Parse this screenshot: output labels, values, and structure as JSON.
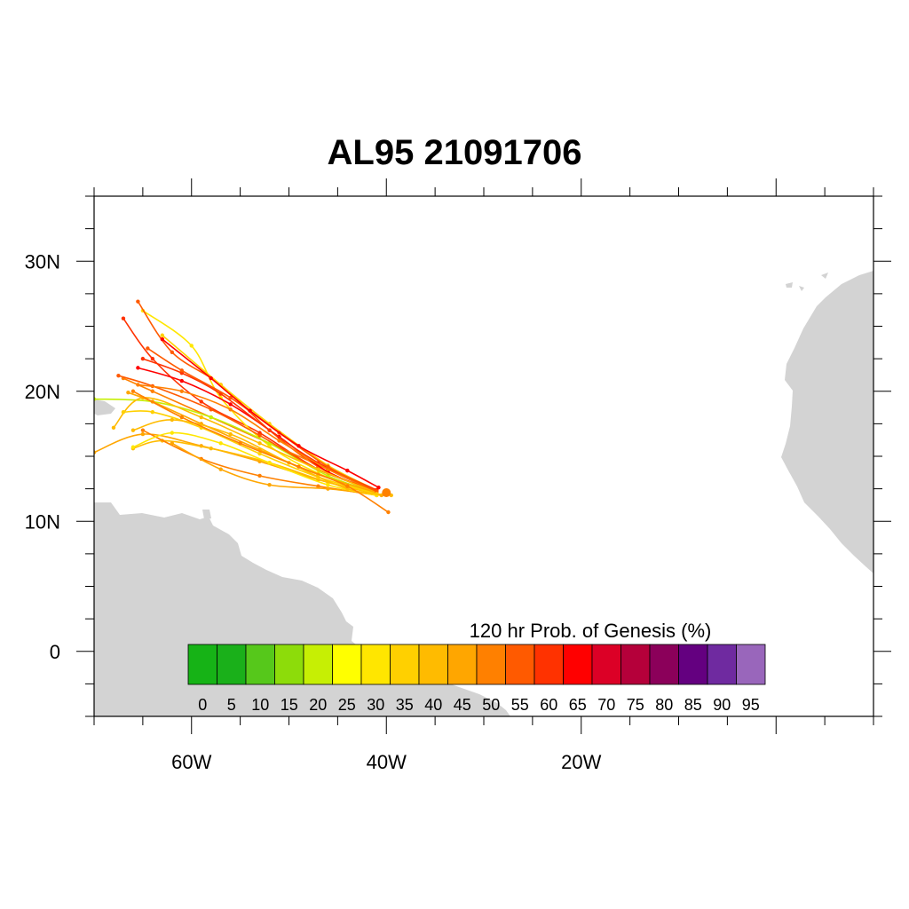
{
  "title": "AL95 21091706",
  "map": {
    "lon_range": [
      -70,
      10
    ],
    "lat_range": [
      -5,
      35
    ],
    "land_color": "#d3d3d3",
    "ocean_color": "#ffffff",
    "x_ticks": [
      {
        "lon": -60,
        "label": "60W"
      },
      {
        "lon": -40,
        "label": "40W"
      },
      {
        "lon": -20,
        "label": "20W"
      }
    ],
    "y_ticks": [
      {
        "lat": 30,
        "label": "30N"
      },
      {
        "lat": 20,
        "label": "20N"
      },
      {
        "lat": 10,
        "label": "10N"
      },
      {
        "lat": 0,
        "label": "0"
      }
    ]
  },
  "colorbar": {
    "title": "120 hr Prob. of Genesis (%)",
    "labels": [
      "0",
      "5",
      "10",
      "15",
      "20",
      "25",
      "30",
      "35",
      "40",
      "45",
      "50",
      "55",
      "60",
      "65",
      "70",
      "75",
      "80",
      "85",
      "90",
      "95"
    ],
    "colors": [
      "#16b316",
      "#1ab01a",
      "#56c81b",
      "#8ddc0a",
      "#c6ef04",
      "#ffff00",
      "#ffe600",
      "#ffd000",
      "#ffbb00",
      "#ffa600",
      "#ff8000",
      "#ff5a00",
      "#ff3200",
      "#ff0000",
      "#dc0026",
      "#b5003a",
      "#8b005a",
      "#640080",
      "#6f2aa0",
      "#9966bb"
    ]
  },
  "chart_data": {
    "type": "track-ensemble",
    "origin": [
      -40,
      12.2
    ],
    "tracks": [
      {
        "color": "#ff3200",
        "points": [
          [
            -41.2,
            12.4
          ],
          [
            -47,
            14
          ],
          [
            -53,
            16.8
          ],
          [
            -59,
            19.2
          ],
          [
            -64,
            22.5
          ],
          [
            -67,
            25.6
          ]
        ]
      },
      {
        "color": "#ffe600",
        "points": [
          [
            -41.5,
            12.2
          ],
          [
            -47,
            13.7
          ],
          [
            -52,
            15.8
          ],
          [
            -57,
            19.5
          ],
          [
            -60,
            23.5
          ],
          [
            -65,
            26.2
          ]
        ]
      },
      {
        "color": "#ff5a00",
        "points": [
          [
            -41.5,
            12.3
          ],
          [
            -47,
            14.2
          ],
          [
            -52,
            17
          ],
          [
            -57,
            20.5
          ],
          [
            -62,
            23
          ],
          [
            -65.5,
            26.9
          ]
        ]
      },
      {
        "color": "#ff8000",
        "points": [
          [
            -41,
            12.2
          ],
          [
            -46,
            14
          ],
          [
            -52,
            16
          ],
          [
            -58,
            18
          ],
          [
            -64,
            20
          ],
          [
            -67,
            21
          ]
        ]
      },
      {
        "color": "#ffa600",
        "points": [
          [
            -41,
            12.1
          ],
          [
            -47,
            13.2
          ],
          [
            -53,
            14.6
          ],
          [
            -59,
            15.8
          ],
          [
            -65,
            16.7
          ],
          [
            -70,
            15.3
          ]
        ]
      },
      {
        "color": "#ffbb00",
        "points": [
          [
            -41,
            12.1
          ],
          [
            -46,
            13
          ],
          [
            -52,
            14.5
          ],
          [
            -58,
            15.6
          ],
          [
            -63,
            16.2
          ],
          [
            -66,
            15.6
          ]
        ]
      },
      {
        "color": "#c6ef04",
        "points": [
          [
            -41,
            12.2
          ],
          [
            -46,
            13.5
          ],
          [
            -52,
            16
          ],
          [
            -58,
            18
          ],
          [
            -64,
            19.2
          ],
          [
            -70,
            19.4
          ]
        ]
      },
      {
        "color": "#ffd000",
        "points": [
          [
            -41,
            12.4
          ],
          [
            -46,
            14.3
          ],
          [
            -52,
            17.5
          ],
          [
            -57,
            20.5
          ],
          [
            -63,
            24.3
          ]
        ]
      },
      {
        "color": "#ff0000",
        "points": [
          [
            -41,
            12.3
          ],
          [
            -46,
            13.8
          ],
          [
            -51,
            16.5
          ],
          [
            -56,
            19
          ],
          [
            -61,
            20.8
          ],
          [
            -65.5,
            21.8
          ]
        ]
      },
      {
        "color": "#ff8000",
        "points": [
          [
            -41,
            12
          ],
          [
            -47,
            12.7
          ],
          [
            -53,
            13.5
          ],
          [
            -59,
            14.8
          ],
          [
            -65,
            17
          ]
        ]
      },
      {
        "color": "#ffa600",
        "points": [
          [
            -40.5,
            12
          ],
          [
            -46,
            12.5
          ],
          [
            -52,
            12.8
          ],
          [
            -57,
            14
          ],
          [
            -62,
            16
          ]
        ]
      },
      {
        "color": "#ff5a00",
        "points": [
          [
            -41,
            12.3
          ],
          [
            -47,
            14
          ],
          [
            -53,
            16.6
          ],
          [
            -58,
            18.6
          ],
          [
            -64,
            20.4
          ],
          [
            -67.5,
            21.2
          ]
        ]
      },
      {
        "color": "#ffbb00",
        "points": [
          [
            -41,
            12.2
          ],
          [
            -47,
            14
          ],
          [
            -53,
            16
          ],
          [
            -59,
            18
          ],
          [
            -65,
            19.5
          ],
          [
            -68,
            17.2
          ]
        ]
      },
      {
        "color": "#ff3200",
        "points": [
          [
            -41,
            12.4
          ],
          [
            -47,
            14.5
          ],
          [
            -52,
            17
          ],
          [
            -57,
            19.8
          ],
          [
            -61,
            21.4
          ],
          [
            -65,
            22.5
          ]
        ]
      },
      {
        "color": "#ffe600",
        "points": [
          [
            -41,
            12
          ],
          [
            -46,
            12.8
          ],
          [
            -52,
            14.5
          ],
          [
            -57,
            16
          ],
          [
            -62,
            16.8
          ],
          [
            -66,
            15.7
          ]
        ]
      },
      {
        "color": "#ff8000",
        "points": [
          [
            -41,
            12.3
          ],
          [
            -46,
            14
          ],
          [
            -51,
            16.2
          ],
          [
            -56,
            18.6
          ],
          [
            -61,
            20
          ],
          [
            -65.5,
            20.5
          ]
        ]
      },
      {
        "color": "#ffa600",
        "points": [
          [
            -41,
            12.2
          ],
          [
            -47,
            13.6
          ],
          [
            -53,
            15.5
          ],
          [
            -59,
            17.5
          ],
          [
            -64,
            19.2
          ],
          [
            -66.5,
            19.9
          ]
        ]
      },
      {
        "color": "#ff5a00",
        "points": [
          [
            -41,
            12.3
          ],
          [
            -46,
            14.2
          ],
          [
            -51,
            16.8
          ],
          [
            -56,
            19.5
          ],
          [
            -61,
            21.6
          ],
          [
            -64.5,
            23.3
          ]
        ]
      },
      {
        "color": "#ffd000",
        "points": [
          [
            -41,
            12.1
          ],
          [
            -47,
            13.4
          ],
          [
            -53,
            15.2
          ],
          [
            -59,
            17.2
          ],
          [
            -64,
            18.4
          ],
          [
            -67,
            18.4
          ]
        ]
      },
      {
        "color": "#ff0000",
        "points": [
          [
            -40.8,
            12.6
          ],
          [
            -44,
            13.9
          ],
          [
            -49,
            15.8
          ],
          [
            -54,
            18.5
          ],
          [
            -58,
            21
          ],
          [
            -63,
            24
          ]
        ]
      },
      {
        "color": "#ffbb00",
        "points": [
          [
            -39.5,
            12
          ],
          [
            -44,
            12.5
          ],
          [
            -50,
            14.5
          ],
          [
            -56,
            16.7
          ],
          [
            -62,
            17.8
          ],
          [
            -66,
            17
          ]
        ]
      },
      {
        "color": "#ff8000",
        "points": [
          [
            -39.8,
            10.7
          ],
          [
            -44,
            12.7
          ],
          [
            -49,
            14.2
          ],
          [
            -55,
            16
          ],
          [
            -61,
            18
          ],
          [
            -66,
            20
          ]
        ]
      }
    ]
  }
}
